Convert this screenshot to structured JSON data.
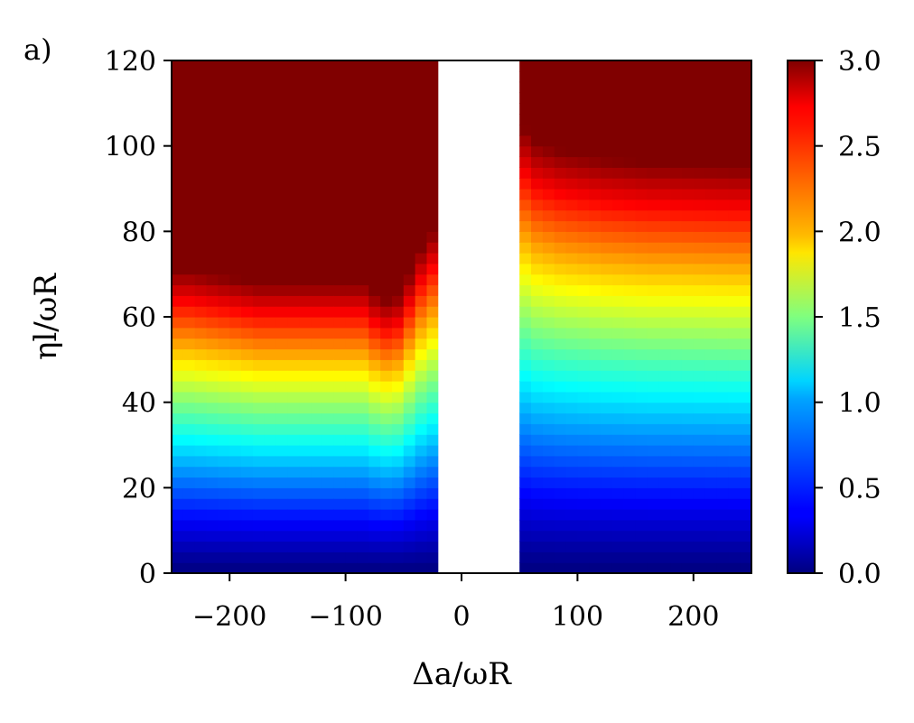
{
  "figure": {
    "panel_label": "a)"
  },
  "chart_data": {
    "type": "heatmap",
    "xlabel": "Δa/ωR",
    "ylabel": "ηl/ωR",
    "xlim": [
      -250,
      250
    ],
    "ylim": [
      0,
      120
    ],
    "x_ticks": [
      -200,
      -100,
      0,
      100,
      200
    ],
    "x_tick_labels": [
      "−200",
      "−100",
      "0",
      "100",
      "200"
    ],
    "y_ticks": [
      0,
      20,
      40,
      60,
      80,
      100,
      120
    ],
    "y_tick_labels": [
      "0",
      "20",
      "40",
      "60",
      "80",
      "100",
      "120"
    ],
    "colorbar": {
      "range": [
        0.0,
        3.0
      ],
      "ticks": [
        0.0,
        0.5,
        1.0,
        1.5,
        2.0,
        2.5,
        3.0
      ],
      "tick_labels": [
        "0.0",
        "0.5",
        "1.0",
        "1.5",
        "2.0",
        "2.5",
        "3.0"
      ],
      "colormap": "jet"
    },
    "excluded_x_range": [
      -20,
      20
    ],
    "grid": {
      "x_start": -250,
      "x_step": 10,
      "x_count": 50,
      "y_start": 0,
      "y_step": 2.5,
      "y_count": 48
    },
    "saturation_threshold_by_column": [
      71,
      71,
      70.5,
      70,
      69.5,
      69,
      68.5,
      68,
      68,
      68,
      68,
      68,
      68,
      68,
      68,
      68,
      68,
      65.5,
      64,
      65,
      70,
      76,
      80,
      92,
      120,
      null,
      null,
      null,
      null,
      null,
      104,
      101,
      100,
      99,
      98.5,
      98,
      97.5,
      97,
      96.8,
      96.5,
      96.2,
      96,
      96,
      95.8,
      95.7,
      95.6,
      95.5,
      95.4,
      95.3,
      95.2
    ],
    "value_rule": "value(x, y) = min(3, 3 * (y / saturation_threshold(x))^1.2)"
  }
}
